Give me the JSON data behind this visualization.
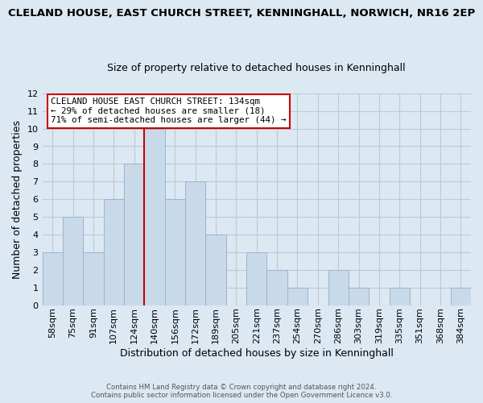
{
  "title": "CLELAND HOUSE, EAST CHURCH STREET, KENNINGHALL, NORWICH, NR16 2EP",
  "subtitle": "Size of property relative to detached houses in Kenninghall",
  "xlabel": "Distribution of detached houses by size in Kenninghall",
  "ylabel": "Number of detached properties",
  "footer_line1": "Contains HM Land Registry data © Crown copyright and database right 2024.",
  "footer_line2": "Contains public sector information licensed under the Open Government Licence v3.0.",
  "bin_labels": [
    "58sqm",
    "75sqm",
    "91sqm",
    "107sqm",
    "124sqm",
    "140sqm",
    "156sqm",
    "172sqm",
    "189sqm",
    "205sqm",
    "221sqm",
    "237sqm",
    "254sqm",
    "270sqm",
    "286sqm",
    "303sqm",
    "319sqm",
    "335sqm",
    "351sqm",
    "368sqm",
    "384sqm"
  ],
  "bar_heights": [
    3,
    5,
    3,
    6,
    8,
    10,
    6,
    7,
    4,
    0,
    3,
    2,
    1,
    0,
    2,
    1,
    0,
    1,
    0,
    0,
    1
  ],
  "bar_color": "#c8daea",
  "bar_edge_color": "#9ab4cc",
  "reference_line_x": 4.5,
  "reference_line_color": "#cc0000",
  "annotation_text": "CLELAND HOUSE EAST CHURCH STREET: 134sqm\n← 29% of detached houses are smaller (18)\n71% of semi-detached houses are larger (44) →",
  "annotation_box_color": "#ffffff",
  "annotation_box_edge_color": "#cc0000",
  "ylim": [
    0,
    12
  ],
  "yticks": [
    0,
    1,
    2,
    3,
    4,
    5,
    6,
    7,
    8,
    9,
    10,
    11,
    12
  ],
  "grid_color": "#b8ccd8",
  "background_color": "#dce8f2",
  "title_fontsize": 9.5,
  "subtitle_fontsize": 9.0,
  "axis_label_fontsize": 9.0,
  "tick_fontsize": 8.0,
  "annotation_fontsize": 7.8
}
